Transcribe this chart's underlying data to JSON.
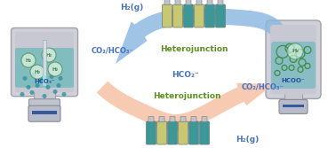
{
  "bg_color": "#ffffff",
  "arrow_blue_color": "#8ab8e0",
  "arrow_orange_color": "#f5c0a0",
  "text_blue": "#4472c4",
  "text_green": "#5a9020",
  "figsize": [
    3.78,
    1.67
  ],
  "dpi": 100,
  "text_labels": {
    "h2_top": "H₂(g)",
    "co2_left": "CO₂/HCO₃⁻",
    "heterojunction_top": "Heterojunction",
    "hco2_mid": "HCO₂⁻",
    "heterojunction_bot": "Heterojunction",
    "co2_right": "CO₂/HCO₃⁻",
    "h2_bot": "H₂(g)",
    "hco3_label": "HCO₃⁻",
    "hcoo_label": "HCOO⁻"
  },
  "cat_colors_top": [
    "#c8c870",
    "#c8c870",
    "#3a9898",
    "#c8c870",
    "#3a9898",
    "#3a9898"
  ],
  "cat_colors_bot": [
    "#3a9898",
    "#c8c870",
    "#3a9898",
    "#c8c870",
    "#3a9898",
    "#3a9898"
  ]
}
